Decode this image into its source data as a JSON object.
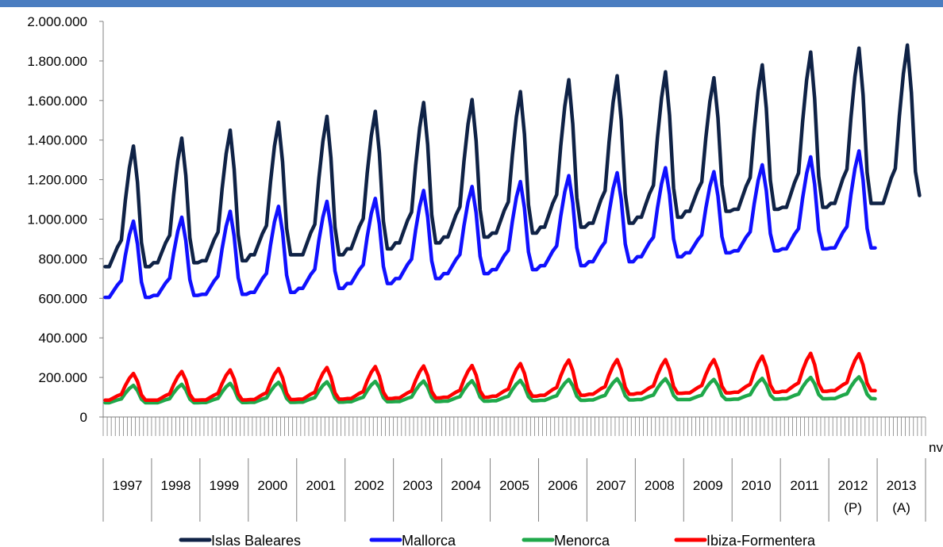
{
  "chart_data": {
    "type": "line",
    "title": "",
    "xlabel": "",
    "ylabel": "",
    "ylim": [
      0,
      2000000
    ],
    "y_ticks": [
      "0",
      "200.000",
      "400.000",
      "600.000",
      "800.000",
      "1.000.000",
      "1.200.000",
      "1.400.000",
      "1.600.000",
      "1.800.000",
      "2.000.000"
    ],
    "x_groups": [
      {
        "label": "1997"
      },
      {
        "label": "1998"
      },
      {
        "label": "1999"
      },
      {
        "label": "2000"
      },
      {
        "label": "2001"
      },
      {
        "label": "2002"
      },
      {
        "label": "2003"
      },
      {
        "label": "2004"
      },
      {
        "label": "2005"
      },
      {
        "label": "2006"
      },
      {
        "label": "2007"
      },
      {
        "label": "2008"
      },
      {
        "label": "2009"
      },
      {
        "label": "2010"
      },
      {
        "label": "2011"
      },
      {
        "label": "2012",
        "sub": "(P)"
      },
      {
        "label": "2013",
        "sub": "(A)"
      }
    ],
    "month_label_visible": "nv",
    "months_per_year": 12,
    "grid": false,
    "legend_position": "bottom",
    "series": [
      {
        "name": "Islas Baleares",
        "color": "#0f2246",
        "months": 203,
        "shape": {
          "trough": [
            760000,
            780000,
            790000,
            820000,
            820000,
            850000,
            880000,
            910000,
            930000,
            960000,
            980000,
            1010000,
            1040000,
            1050000,
            1060000,
            1080000,
            1080000
          ],
          "peak": [
            1370000,
            1410000,
            1450000,
            1490000,
            1520000,
            1545000,
            1590000,
            1605000,
            1645000,
            1705000,
            1725000,
            1745000,
            1715000,
            1780000,
            1845000,
            1865000,
            1880000
          ],
          "end_value": 1120000
        }
      },
      {
        "name": "Mallorca",
        "color": "#1010ff",
        "months": 192,
        "shape": {
          "trough": [
            605000,
            615000,
            620000,
            630000,
            650000,
            675000,
            700000,
            725000,
            745000,
            765000,
            785000,
            810000,
            830000,
            840000,
            850000,
            855000
          ],
          "peak": [
            990000,
            1010000,
            1040000,
            1065000,
            1090000,
            1105000,
            1145000,
            1165000,
            1190000,
            1220000,
            1235000,
            1260000,
            1240000,
            1275000,
            1315000,
            1345000
          ],
          "end_value": 855000
        }
      },
      {
        "name": "Menorca",
        "color": "#1fa84a",
        "months": 192,
        "shape": {
          "trough": [
            72000,
            72000,
            73000,
            74000,
            75000,
            77000,
            78000,
            80000,
            82000,
            84000,
            86000,
            88000,
            88000,
            90000,
            92000,
            93000
          ],
          "peak": [
            160000,
            165000,
            170000,
            175000,
            178000,
            180000,
            182000,
            183000,
            185000,
            190000,
            193000,
            193000,
            190000,
            195000,
            200000,
            203000
          ],
          "end_value": 92000
        }
      },
      {
        "name": "Ibiza-Formentera",
        "color": "#ff0000",
        "months": 192,
        "shape": {
          "trough": [
            85000,
            85000,
            86000,
            88000,
            90000,
            93000,
            96000,
            100000,
            105000,
            110000,
            115000,
            120000,
            122000,
            125000,
            130000,
            133000
          ],
          "peak": [
            220000,
            230000,
            238000,
            245000,
            250000,
            255000,
            258000,
            260000,
            270000,
            288000,
            290000,
            290000,
            290000,
            308000,
            322000,
            320000
          ],
          "end_value": 133000
        }
      }
    ]
  },
  "header": {
    "accent_color": "#4a7dc0"
  }
}
